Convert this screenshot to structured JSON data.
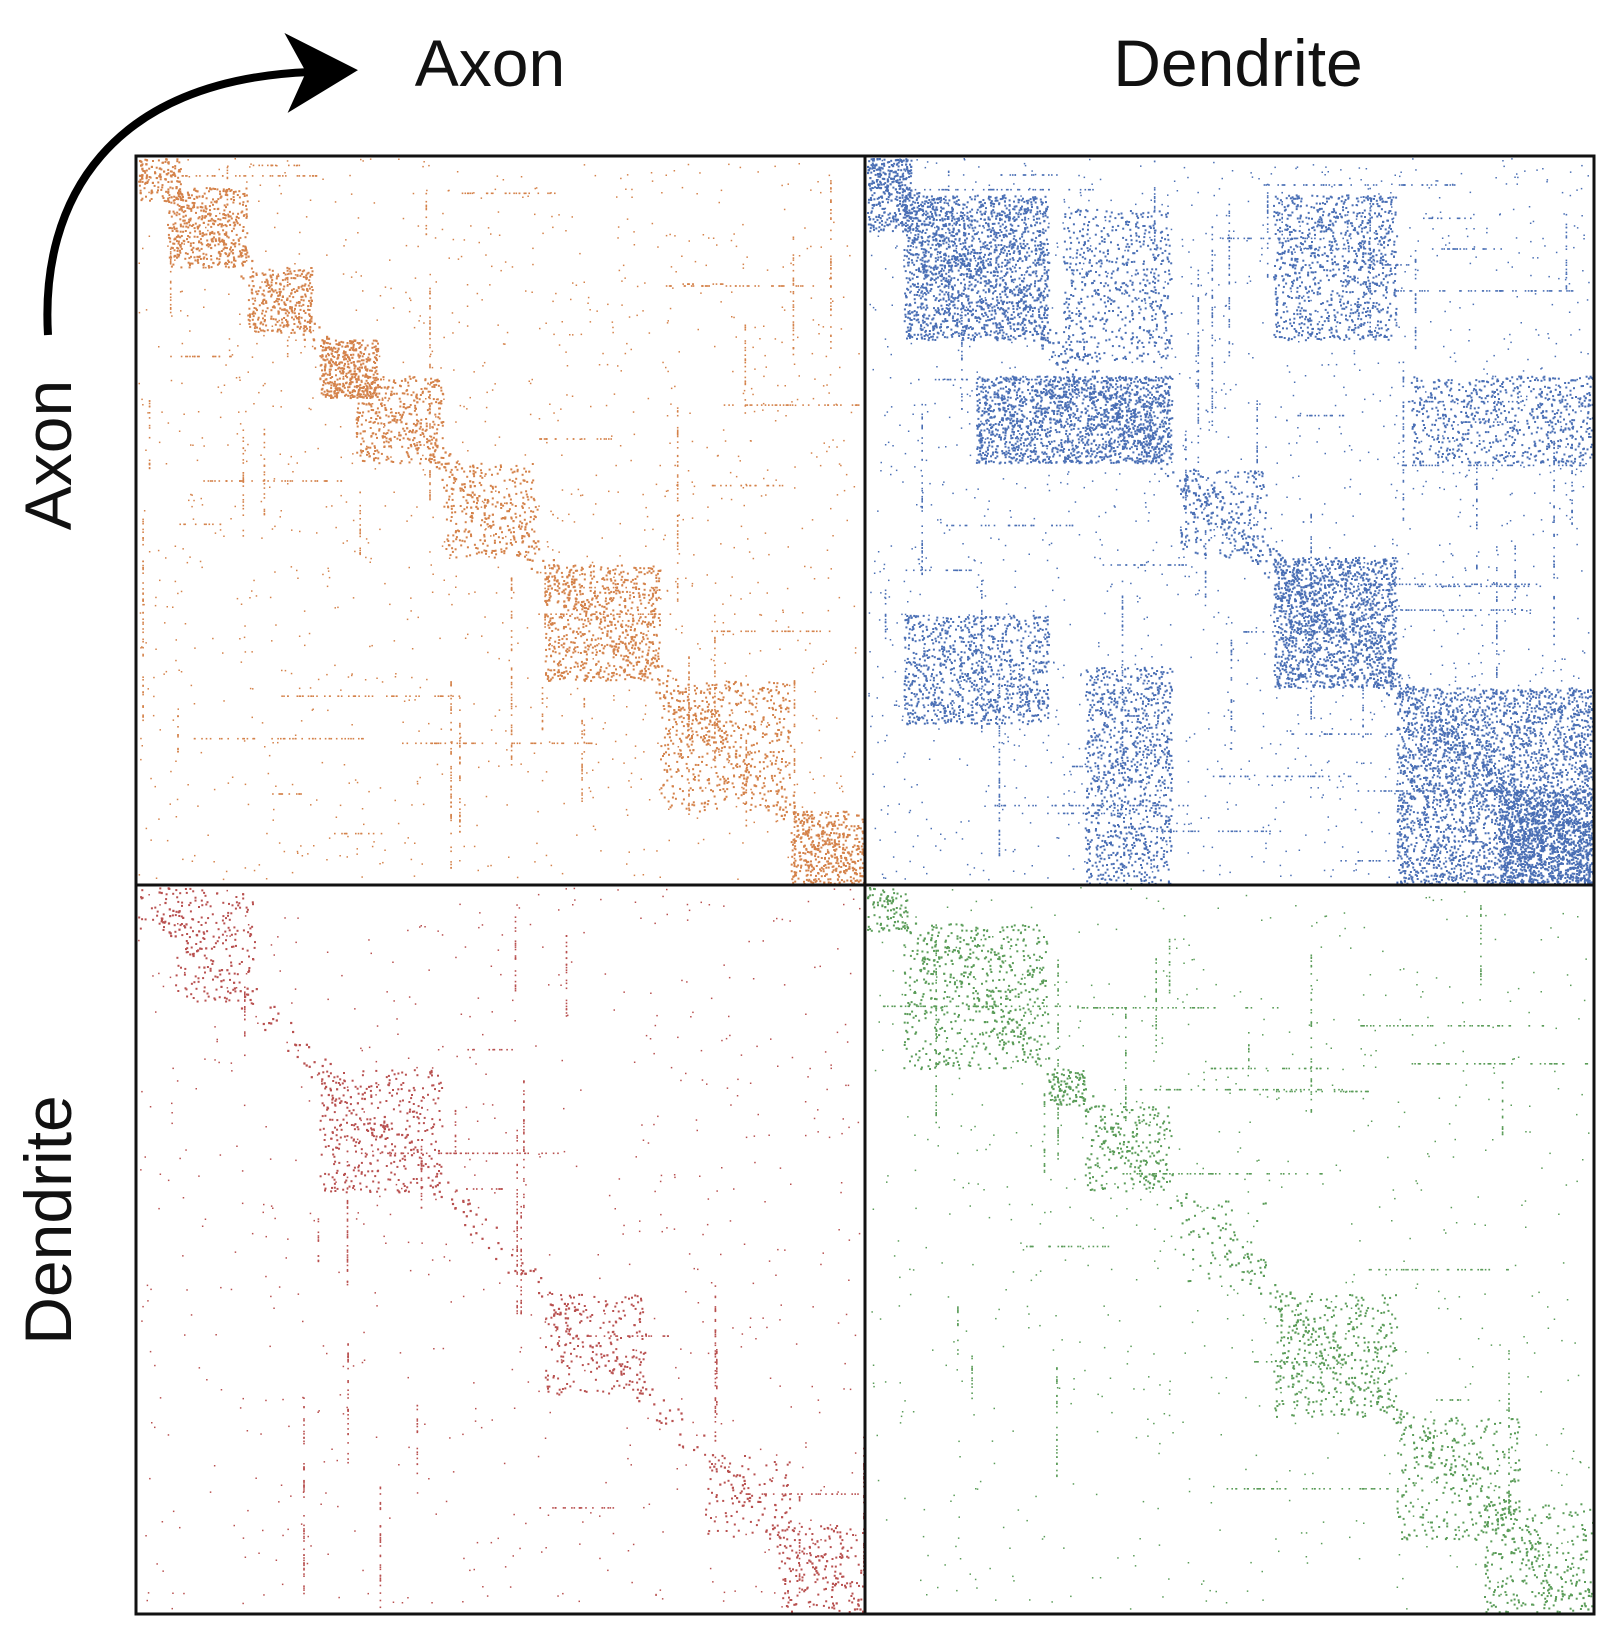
{
  "chart_data": {
    "type": "heatmap",
    "title": "",
    "column_labels": [
      "Axon",
      "Dendrite"
    ],
    "row_labels": [
      "Axon",
      "Dendrite"
    ],
    "panels": [
      {
        "row": "Axon",
        "col": "Axon",
        "color": "#d4824a",
        "density": 0.75,
        "blocks": [
          [
            0.0,
            0.06,
            0.0,
            0.06,
            0.45
          ],
          [
            0.04,
            0.15,
            0.04,
            0.15,
            0.55
          ],
          [
            0.15,
            0.24,
            0.15,
            0.24,
            0.5
          ],
          [
            0.25,
            0.33,
            0.25,
            0.33,
            0.95
          ],
          [
            0.3,
            0.42,
            0.3,
            0.42,
            0.4
          ],
          [
            0.42,
            0.55,
            0.42,
            0.55,
            0.25
          ],
          [
            0.56,
            0.72,
            0.56,
            0.72,
            0.4
          ],
          [
            0.72,
            0.9,
            0.72,
            0.9,
            0.25
          ],
          [
            0.9,
            1.0,
            0.9,
            1.0,
            0.6
          ]
        ]
      },
      {
        "row": "Axon",
        "col": "Dendrite",
        "color": "#4a6fb5",
        "density": 1.0,
        "blocks": [
          [
            0.0,
            0.06,
            0.0,
            0.1,
            0.55
          ],
          [
            0.05,
            0.25,
            0.05,
            0.25,
            0.5
          ],
          [
            0.15,
            0.42,
            0.3,
            0.42,
            0.6
          ],
          [
            0.27,
            0.42,
            0.07,
            0.28,
            0.2
          ],
          [
            0.05,
            0.25,
            0.63,
            0.78,
            0.35
          ],
          [
            0.3,
            0.42,
            0.7,
            1.0,
            0.3
          ],
          [
            0.56,
            0.73,
            0.55,
            0.73,
            0.55
          ],
          [
            0.56,
            0.73,
            0.05,
            0.25,
            0.3
          ],
          [
            0.73,
            1.0,
            0.73,
            1.0,
            0.45
          ],
          [
            0.87,
            1.0,
            0.87,
            1.0,
            0.65
          ],
          [
            0.75,
            1.0,
            0.3,
            0.42,
            0.25
          ],
          [
            0.43,
            0.55,
            0.43,
            0.55,
            0.15
          ]
        ]
      },
      {
        "row": "Dendrite",
        "col": "Axon",
        "color": "#b8504f",
        "density": 0.4,
        "blocks": [
          [
            0.0,
            0.06,
            0.0,
            0.06,
            0.3
          ],
          [
            0.05,
            0.16,
            0.0,
            0.16,
            0.3
          ],
          [
            0.25,
            0.42,
            0.25,
            0.42,
            0.35
          ],
          [
            0.56,
            0.7,
            0.56,
            0.7,
            0.3
          ],
          [
            0.78,
            0.9,
            0.78,
            0.9,
            0.2
          ],
          [
            0.88,
            1.0,
            0.88,
            1.0,
            0.35
          ]
        ]
      },
      {
        "row": "Dendrite",
        "col": "Dendrite",
        "color": "#5a9c58",
        "density": 0.45,
        "blocks": [
          [
            0.0,
            0.06,
            0.0,
            0.06,
            0.5
          ],
          [
            0.05,
            0.25,
            0.05,
            0.25,
            0.35
          ],
          [
            0.25,
            0.3,
            0.25,
            0.3,
            0.95
          ],
          [
            0.3,
            0.42,
            0.3,
            0.42,
            0.35
          ],
          [
            0.56,
            0.73,
            0.56,
            0.73,
            0.35
          ],
          [
            0.73,
            0.9,
            0.73,
            0.9,
            0.25
          ],
          [
            0.85,
            1.0,
            0.85,
            1.0,
            0.3
          ],
          [
            0.43,
            0.55,
            0.43,
            0.55,
            0.1
          ]
        ]
      }
    ]
  }
}
